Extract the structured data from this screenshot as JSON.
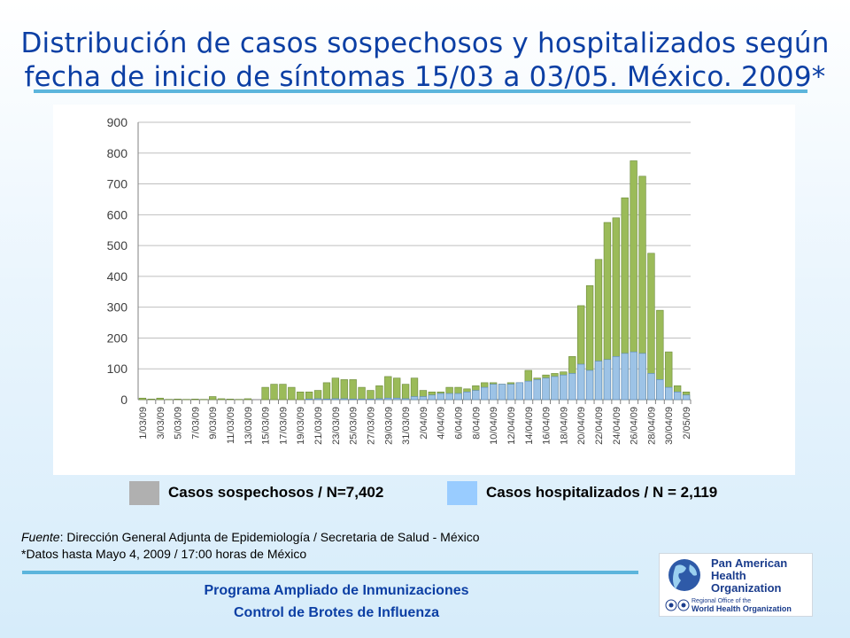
{
  "title_line1": "Distribución de casos sospechosos y hospitalizados según",
  "title_line2": "fecha de inicio de síntomas 15/03 a 03/05. México. 2009*",
  "colors": {
    "title": "#0c3fa4",
    "suspected": "#9bbb59",
    "hospitalized": "#9dc3e6",
    "legend_suspected": "#b0b0b0",
    "legend_hospitalized": "#99ccff",
    "rule": "#5cb5dc"
  },
  "legend": {
    "suspected": "Casos sospechosos / N=7,402",
    "hospitalized": "Casos hospitalizados / N = 2,119"
  },
  "source": {
    "label": "Fuente",
    "text": ": Dirección General Adjunta de Epidemiología / Secretaria de Salud - México",
    "note": "*Datos hasta Mayo 4, 2009 / 17:00 horas de México"
  },
  "footer": {
    "line1": "Programa Ampliado de Inmunizaciones",
    "line2": "Control de Brotes de Influenza"
  },
  "logo": {
    "name_line1": "Pan American",
    "name_line2": "Health",
    "name_line3": "Organization",
    "sub_line1": "Regional Office of the",
    "sub_line2": "World Health Organization"
  },
  "chart_data": {
    "type": "bar",
    "stacked": false,
    "overlay": true,
    "ylim": [
      0,
      900
    ],
    "yticks": [
      0,
      100,
      200,
      300,
      400,
      500,
      600,
      700,
      800,
      900
    ],
    "grid": "horizontal",
    "categories": [
      "1/03/09",
      "2/03/09",
      "3/03/09",
      "4/03/09",
      "5/03/09",
      "6/03/09",
      "7/03/09",
      "8/03/09",
      "9/03/09",
      "10/03/09",
      "11/03/09",
      "12/03/09",
      "13/03/09",
      "14/03/09",
      "15/03/09",
      "16/03/09",
      "17/03/09",
      "18/03/09",
      "19/03/09",
      "20/03/09",
      "21/03/09",
      "22/03/09",
      "23/03/09",
      "24/03/09",
      "25/03/09",
      "26/03/09",
      "27/03/09",
      "28/03/09",
      "29/03/09",
      "30/03/09",
      "31/03/09",
      "1/04/09",
      "2/04/09",
      "3/04/09",
      "4/04/09",
      "5/04/09",
      "6/04/09",
      "7/04/09",
      "8/04/09",
      "9/04/09",
      "10/04/09",
      "11/04/09",
      "12/04/09",
      "13/04/09",
      "14/04/09",
      "15/04/09",
      "16/04/09",
      "17/04/09",
      "18/04/09",
      "19/04/09",
      "20/04/09",
      "21/04/09",
      "22/04/09",
      "23/04/09",
      "24/04/09",
      "25/04/09",
      "26/04/09",
      "27/04/09",
      "28/04/09",
      "29/04/09",
      "30/04/09",
      "1/05/09",
      "2/05/09"
    ],
    "x_tick_labels": [
      "1/03/09",
      "3/03/09",
      "5/03/09",
      "7/03/09",
      "9/03/09",
      "11/03/09",
      "13/03/09",
      "15/03/09",
      "17/03/09",
      "19/03/09",
      "21/03/09",
      "23/03/09",
      "25/03/09",
      "27/03/09",
      "29/03/09",
      "31/03/09",
      "2/04/09",
      "4/04/09",
      "6/04/09",
      "8/04/09",
      "10/04/09",
      "12/04/09",
      "14/04/09",
      "16/04/09",
      "18/04/09",
      "20/04/09",
      "22/04/09",
      "24/04/09",
      "26/04/09",
      "28/04/09",
      "30/04/09",
      "2/05/09"
    ],
    "series": [
      {
        "name": "Casos sospechosos",
        "values": [
          5,
          2,
          5,
          1,
          2,
          1,
          2,
          1,
          10,
          3,
          2,
          1,
          3,
          0,
          40,
          50,
          50,
          40,
          25,
          25,
          30,
          55,
          70,
          65,
          65,
          40,
          30,
          45,
          75,
          70,
          50,
          70,
          30,
          25,
          25,
          40,
          40,
          35,
          45,
          55,
          55,
          50,
          55,
          55,
          95,
          70,
          80,
          85,
          90,
          140,
          305,
          370,
          455,
          575,
          590,
          655,
          775,
          725,
          475,
          290,
          155,
          45,
          25
        ]
      },
      {
        "name": "Casos hospitalizados",
        "values": [
          0,
          0,
          0,
          0,
          0,
          0,
          0,
          0,
          0,
          0,
          0,
          0,
          0,
          0,
          0,
          0,
          0,
          0,
          0,
          2,
          3,
          2,
          3,
          3,
          2,
          2,
          2,
          3,
          5,
          5,
          3,
          10,
          10,
          15,
          20,
          20,
          20,
          25,
          30,
          40,
          50,
          50,
          50,
          55,
          60,
          65,
          70,
          75,
          80,
          85,
          115,
          95,
          125,
          130,
          140,
          150,
          155,
          150,
          85,
          65,
          40,
          25,
          15
        ]
      }
    ]
  }
}
